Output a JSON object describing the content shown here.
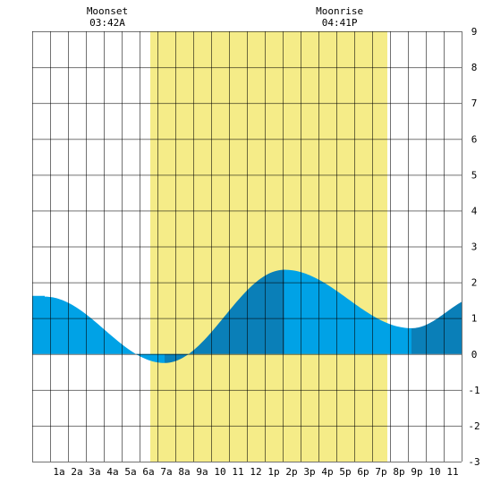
{
  "chart_data": {
    "type": "area",
    "title": "",
    "xlabel": "",
    "ylabel": "",
    "x_unit": "hour of day",
    "xlim": [
      -0.5,
      23.5
    ],
    "ylim": [
      -3,
      9
    ],
    "y_ticks": [
      -3,
      -2,
      -1,
      0,
      1,
      2,
      3,
      4,
      5,
      6,
      7,
      8,
      9
    ],
    "x_ticks": [
      {
        "x": 1,
        "label": "1a"
      },
      {
        "x": 2,
        "label": "2a"
      },
      {
        "x": 3,
        "label": "3a"
      },
      {
        "x": 4,
        "label": "4a"
      },
      {
        "x": 5,
        "label": "5a"
      },
      {
        "x": 6,
        "label": "6a"
      },
      {
        "x": 7,
        "label": "7a"
      },
      {
        "x": 8,
        "label": "8a"
      },
      {
        "x": 9,
        "label": "9a"
      },
      {
        "x": 10,
        "label": "10"
      },
      {
        "x": 11,
        "label": "11"
      },
      {
        "x": 12,
        "label": "12"
      },
      {
        "x": 13,
        "label": "1p"
      },
      {
        "x": 14,
        "label": "2p"
      },
      {
        "x": 15,
        "label": "3p"
      },
      {
        "x": 16,
        "label": "4p"
      },
      {
        "x": 17,
        "label": "5p"
      },
      {
        "x": 18,
        "label": "6p"
      },
      {
        "x": 19,
        "label": "7p"
      },
      {
        "x": 20,
        "label": "8p"
      },
      {
        "x": 21,
        "label": "9p"
      },
      {
        "x": 22,
        "label": "10"
      },
      {
        "x": 23,
        "label": "11"
      }
    ],
    "grid": true,
    "daylight": {
      "start_hour": 6.1,
      "end_hour": 19.35
    },
    "tide_extremes": [
      {
        "type": "high",
        "hour": 0.2,
        "value": 1.6
      },
      {
        "type": "low",
        "hour": 6.9,
        "value": -0.25
      },
      {
        "type": "high",
        "hour": 13.6,
        "value": 2.35
      },
      {
        "type": "low",
        "hour": 20.7,
        "value": 0.72
      },
      {
        "type": "high",
        "hour": 24.6,
        "value": 1.62
      }
    ],
    "events": [
      {
        "label": "Moonset",
        "time": "03:42A",
        "hour": 3.7
      },
      {
        "label": "Moonrise",
        "time": "04:41P",
        "hour": 16.68
      }
    ],
    "colors": {
      "daylight": "#f5ec88",
      "tide_rising": "#0a7fb8",
      "tide_falling": "#00a2e6",
      "grid": "#000000"
    }
  }
}
